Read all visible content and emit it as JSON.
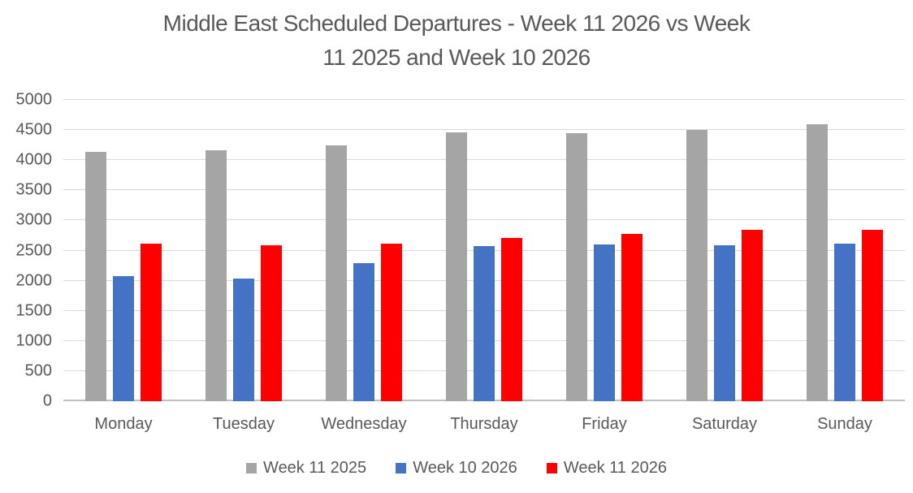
{
  "header": {
    "title_line1": "Middle East Scheduled Departures - Week 11 2026 vs Week",
    "title_line2": "11 2025 and Week 10 2026"
  },
  "colors": {
    "text": "#595959",
    "gridline": "#d9d9d9",
    "axis_line": "#bfbfbf",
    "series_gray": "#a5a5a5",
    "series_blue": "#4472c4",
    "series_red": "#ff0000"
  },
  "chart_data": {
    "type": "bar",
    "title": "Middle East Scheduled Departures - Week 11 2026 vs Week 11 2025 and Week 10 2026",
    "categories": [
      "Monday",
      "Tuesday",
      "Wednesday",
      "Thursday",
      "Friday",
      "Saturday",
      "Sunday"
    ],
    "series": [
      {
        "name": "Week 11 2025",
        "color": "#a5a5a5",
        "values": [
          4140,
          4170,
          4250,
          4460,
          4450,
          4500,
          4600
        ]
      },
      {
        "name": "Week 10 2026",
        "color": "#4472c4",
        "values": [
          2080,
          2040,
          2290,
          2580,
          2600,
          2590,
          2620
        ]
      },
      {
        "name": "Week 11 2026",
        "color": "#ff0000",
        "values": [
          2620,
          2590,
          2610,
          2710,
          2770,
          2840,
          2840
        ]
      }
    ],
    "xlabel": "",
    "ylabel": "",
    "ylim": [
      0,
      5000
    ],
    "ytick_step": 500,
    "yticks": [
      0,
      500,
      1000,
      1500,
      2000,
      2500,
      3000,
      3500,
      4000,
      4500,
      5000
    ],
    "grid": true,
    "legend_position": "bottom"
  }
}
